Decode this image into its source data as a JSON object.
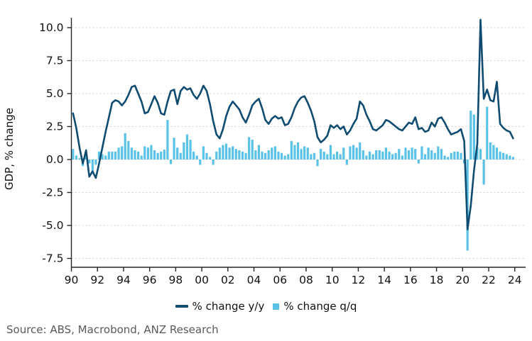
{
  "page": {
    "background": "#ffffff"
  },
  "chart_data": {
    "type": "line+bar",
    "title": "",
    "ylabel": "GDP, % change",
    "x_coverage": "quarterly 1990Q1 to 2023Q4",
    "x_tick_labels": [
      "90",
      "92",
      "94",
      "96",
      "98",
      "00",
      "02",
      "04",
      "06",
      "08",
      "10",
      "12",
      "14",
      "16",
      "18",
      "20",
      "22",
      "24"
    ],
    "y_ticks": [
      10.0,
      7.5,
      5.0,
      2.5,
      0.0,
      -2.5,
      -5.0,
      -7.5
    ],
    "ylim": [
      -8.3,
      11.0
    ],
    "grid": "horizontal-dashed",
    "legend_position": "bottom-center",
    "series": [
      {
        "name": "% change y/y",
        "type": "line",
        "color": "#0F4C70",
        "values": [
          3.5,
          2.4,
          0.9,
          -0.3,
          0.7,
          -1.3,
          -0.9,
          -1.4,
          -0.3,
          0.9,
          2.1,
          3.2,
          4.3,
          4.5,
          4.4,
          4.1,
          4.4,
          4.9,
          5.5,
          5.6,
          5.0,
          4.4,
          3.5,
          3.6,
          4.2,
          4.8,
          4.3,
          3.5,
          3.4,
          4.4,
          5.2,
          5.3,
          4.2,
          5.2,
          5.5,
          5.3,
          5.4,
          4.9,
          4.6,
          5.0,
          5.6,
          5.2,
          4.2,
          2.9,
          1.9,
          1.6,
          2.3,
          3.3,
          4.0,
          4.4,
          4.1,
          3.8,
          3.2,
          2.8,
          3.4,
          4.1,
          4.4,
          4.6,
          3.9,
          3.0,
          2.7,
          3.1,
          3.3,
          3.1,
          3.2,
          2.6,
          2.7,
          3.2,
          3.9,
          4.4,
          4.7,
          4.8,
          4.3,
          3.7,
          2.9,
          1.7,
          1.3,
          1.5,
          1.8,
          2.6,
          2.4,
          2.6,
          2.3,
          2.5,
          1.9,
          2.2,
          2.7,
          3.1,
          4.4,
          4.1,
          3.4,
          2.9,
          2.3,
          2.2,
          2.4,
          2.6,
          3.0,
          2.9,
          2.7,
          2.5,
          2.3,
          2.2,
          2.5,
          2.8,
          2.7,
          3.2,
          2.3,
          2.4,
          2.1,
          2.2,
          2.8,
          2.5,
          3.1,
          3.2,
          2.8,
          2.3,
          1.9,
          2.0,
          2.1,
          2.3,
          1.4,
          -5.3,
          -3.5,
          -0.8,
          1.2,
          10.6,
          4.6,
          5.3,
          4.5,
          4.4,
          5.9,
          2.7,
          2.4,
          2.2,
          2.1,
          1.6
        ]
      },
      {
        "name": "% change q/q",
        "type": "bar",
        "color": "#5BC2E7",
        "values": [
          0.8,
          0.3,
          0.1,
          -0.5,
          0.4,
          -0.3,
          -1.0,
          -0.4,
          0.6,
          0.4,
          0.3,
          0.6,
          0.6,
          0.6,
          0.9,
          1.0,
          2.0,
          1.4,
          0.9,
          0.7,
          0.6,
          0.3,
          1.0,
          0.9,
          1.1,
          0.7,
          0.5,
          0.6,
          0.75,
          3.0,
          -0.35,
          1.65,
          0.9,
          0.5,
          1.3,
          1.9,
          1.5,
          0.6,
          0.3,
          -0.4,
          1.0,
          0.5,
          0.2,
          -0.4,
          0.6,
          0.9,
          1.1,
          1.2,
          0.9,
          1.0,
          0.8,
          0.7,
          0.6,
          0.5,
          1.7,
          1.5,
          0.7,
          1.1,
          0.6,
          0.5,
          0.7,
          0.9,
          1.0,
          0.6,
          0.5,
          0.3,
          0.4,
          1.4,
          1.1,
          1.3,
          0.8,
          1.0,
          0.9,
          0.4,
          0.5,
          -0.5,
          0.8,
          0.6,
          0.4,
          1.1,
          0.4,
          0.6,
          0.4,
          0.9,
          -0.4,
          1.0,
          1.1,
          0.9,
          1.3,
          0.7,
          0.3,
          0.6,
          0.4,
          0.7,
          0.7,
          0.6,
          0.9,
          0.6,
          0.4,
          0.5,
          0.8,
          0.3,
          0.9,
          0.7,
          0.9,
          0.8,
          -0.3,
          1.0,
          0.4,
          0.9,
          0.7,
          0.5,
          1.0,
          0.8,
          0.3,
          0.2,
          0.5,
          0.6,
          0.6,
          0.5,
          -0.3,
          -6.9,
          3.7,
          3.4,
          0.9,
          0.8,
          -1.9,
          4.0,
          1.3,
          1.1,
          0.9,
          0.6,
          0.5,
          0.4,
          0.3,
          0.2
        ]
      }
    ]
  },
  "source_note": "Source: ABS, Macrobond, ANZ Research",
  "colors": {
    "axis": "#262626",
    "grid": "#cccccc",
    "tick_text": "#111111",
    "source_text": "#595959"
  }
}
